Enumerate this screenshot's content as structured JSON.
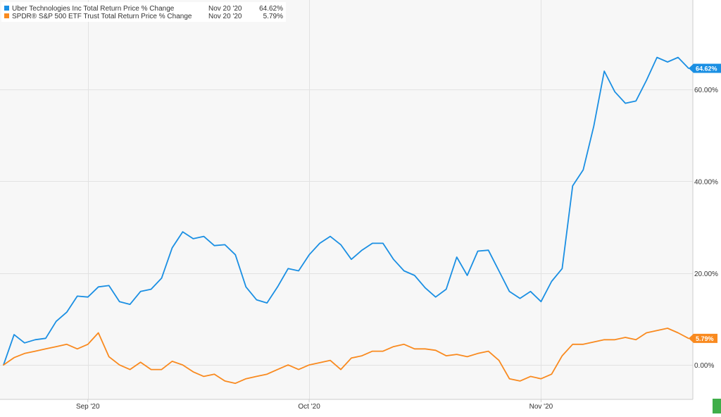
{
  "legend": {
    "items": [
      {
        "label": "Uber Technologies Inc Total Return Price % Change",
        "date": "Nov 20 '20",
        "value": "64.62%",
        "color": "#1a8fe3"
      },
      {
        "label": "SPDR® S&P 500 ETF Trust Total Return Price % Change",
        "date": "Nov 20 '20",
        "value": "5.79%",
        "color": "#f98a1f"
      }
    ]
  },
  "chart_data": {
    "type": "line",
    "title": "",
    "xlabel": "",
    "ylabel": "",
    "x": [
      "Aug 20 '20",
      "Aug 21 '20",
      "Aug 24 '20",
      "Aug 25 '20",
      "Aug 26 '20",
      "Aug 27 '20",
      "Aug 28 '20",
      "Aug 31 '20",
      "Sep 1 '20",
      "Sep 2 '20",
      "Sep 3 '20",
      "Sep 4 '20",
      "Sep 8 '20",
      "Sep 9 '20",
      "Sep 10 '20",
      "Sep 11 '20",
      "Sep 14 '20",
      "Sep 15 '20",
      "Sep 16 '20",
      "Sep 17 '20",
      "Sep 18 '20",
      "Sep 21 '20",
      "Sep 22 '20",
      "Sep 23 '20",
      "Sep 24 '20",
      "Sep 25 '20",
      "Sep 28 '20",
      "Sep 29 '20",
      "Sep 30 '20",
      "Oct 1 '20",
      "Oct 2 '20",
      "Oct 5 '20",
      "Oct 6 '20",
      "Oct 7 '20",
      "Oct 8 '20",
      "Oct 9 '20",
      "Oct 12 '20",
      "Oct 13 '20",
      "Oct 14 '20",
      "Oct 15 '20",
      "Oct 16 '20",
      "Oct 19 '20",
      "Oct 20 '20",
      "Oct 21 '20",
      "Oct 22 '20",
      "Oct 23 '20",
      "Oct 26 '20",
      "Oct 27 '20",
      "Oct 28 '20",
      "Oct 29 '20",
      "Oct 30 '20",
      "Nov 2 '20",
      "Nov 3 '20",
      "Nov 4 '20",
      "Nov 5 '20",
      "Nov 6 '20",
      "Nov 9 '20",
      "Nov 10 '20",
      "Nov 11 '20",
      "Nov 12 '20",
      "Nov 13 '20",
      "Nov 16 '20",
      "Nov 17 '20",
      "Nov 18 '20",
      "Nov 19 '20",
      "Nov 20 '20"
    ],
    "x_ticks": [
      {
        "label": "Sep '20",
        "index": 8
      },
      {
        "label": "Oct '20",
        "index": 29
      },
      {
        "label": "Nov '20",
        "index": 51
      }
    ],
    "y_ticks": [
      {
        "label": "0.00%",
        "value": 0
      },
      {
        "label": "20.00%",
        "value": 20
      },
      {
        "label": "40.00%",
        "value": 40
      },
      {
        "label": "60.00%",
        "value": 60
      }
    ],
    "ylim": [
      -7.5,
      79.5
    ],
    "grid": true,
    "legend_position": "top-left",
    "series": [
      {
        "name": "Uber Technologies Inc Total Return Price % Change",
        "color": "#1a8fe3",
        "end_label": "64.62%",
        "values": [
          0.0,
          6.6,
          4.8,
          5.5,
          5.8,
          9.5,
          11.5,
          15.0,
          14.8,
          17.0,
          17.3,
          13.8,
          13.2,
          16.0,
          16.5,
          18.9,
          25.5,
          29.0,
          27.5,
          28.0,
          26.0,
          26.2,
          24.0,
          17.0,
          14.2,
          13.5,
          17.0,
          21.0,
          20.5,
          24.0,
          26.5,
          28.0,
          26.2,
          23.0,
          25.0,
          26.5,
          26.5,
          23.0,
          20.5,
          19.5,
          16.8,
          14.8,
          16.5,
          23.5,
          19.5,
          24.8,
          25.0,
          20.5,
          16.0,
          14.5,
          16.0,
          13.8,
          18.2,
          21.0,
          39.0,
          42.5,
          52.0,
          64.0,
          59.5,
          57.0,
          57.5,
          62.0,
          67.0,
          66.0,
          67.0,
          64.62
        ]
      },
      {
        "name": "SPDR® S&P 500 ETF Trust Total Return Price % Change",
        "color": "#f98a1f",
        "end_label": "5.79%",
        "values": [
          0.0,
          1.6,
          2.5,
          3.0,
          3.5,
          4.0,
          4.5,
          3.5,
          4.5,
          7.0,
          1.8,
          0.0,
          -1.0,
          0.6,
          -1.0,
          -1.0,
          0.8,
          0.0,
          -1.5,
          -2.5,
          -2.0,
          -3.5,
          -4.0,
          -3.0,
          -2.5,
          -2.0,
          -1.0,
          0.0,
          -1.0,
          0.0,
          0.5,
          1.0,
          -1.0,
          1.5,
          2.0,
          3.0,
          3.0,
          4.0,
          4.5,
          3.5,
          3.5,
          3.2,
          2.0,
          2.3,
          1.8,
          2.5,
          3.0,
          1.0,
          -3.0,
          -3.5,
          -2.5,
          -3.0,
          -2.0,
          2.0,
          4.5,
          4.5,
          5.0,
          5.5,
          5.5,
          6.0,
          5.5,
          7.0,
          7.5,
          8.0,
          7.0,
          5.79
        ]
      }
    ]
  }
}
